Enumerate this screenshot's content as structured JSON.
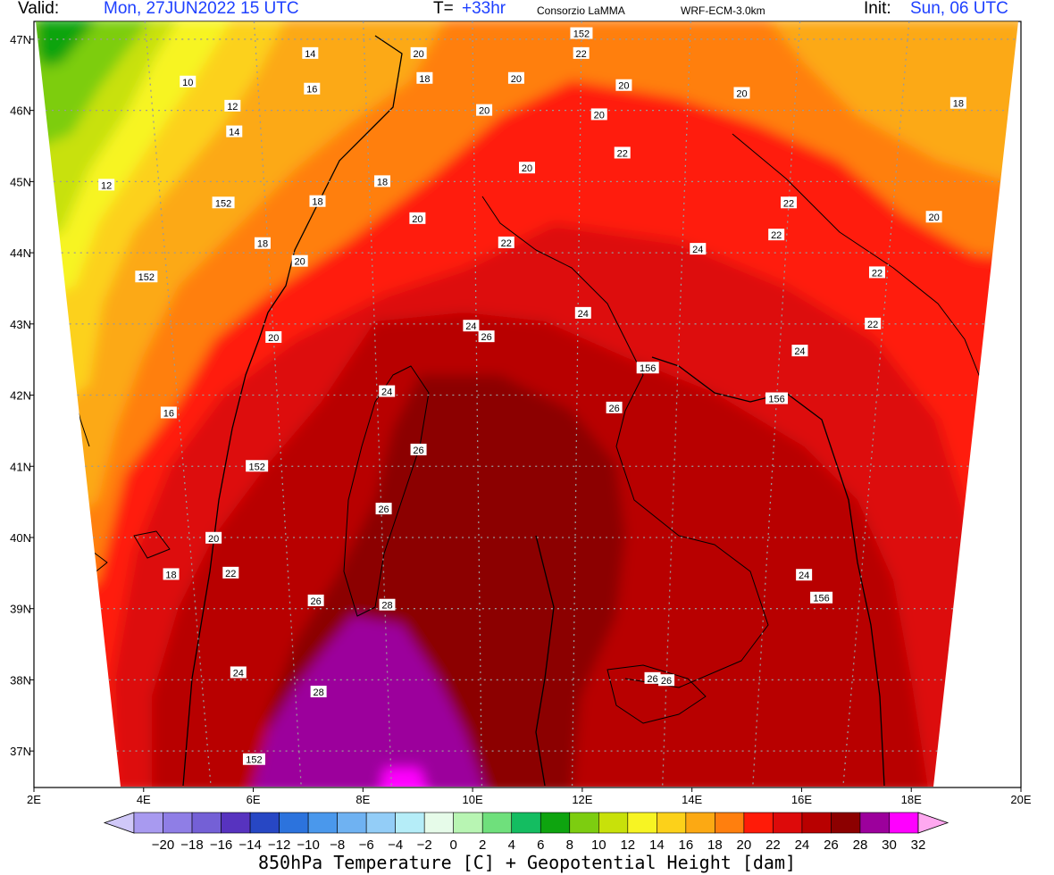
{
  "header": {
    "valid_label": "Valid:",
    "valid_value": "Mon, 27JUN2022  15 UTC",
    "t_label": "T=",
    "t_value": "+33hr",
    "agency": "Consorzio LaMMA",
    "model": "WRF-ECM-3.0km",
    "init_label": "Init:",
    "init_value": "Sun, 06 UTC"
  },
  "map": {
    "longitude_labels": [
      "2E",
      "4E",
      "6E",
      "8E",
      "10E",
      "12E",
      "14E",
      "16E",
      "18E",
      "20E"
    ],
    "latitude_labels": [
      "47N",
      "46N",
      "45N",
      "44N",
      "43N",
      "42N",
      "41N",
      "40N",
      "39N",
      "38N",
      "37N"
    ],
    "temperature_labels": [
      {
        "text": "10",
        "lon": 4.7,
        "lat": 46.4
      },
      {
        "text": "12",
        "lon": 5.5,
        "lat": 46.06
      },
      {
        "text": "14",
        "lon": 5.5,
        "lat": 45.7
      },
      {
        "text": "12",
        "lon": 3.0,
        "lat": 44.95
      },
      {
        "text": "14",
        "lon": 7.0,
        "lat": 46.8
      },
      {
        "text": "16",
        "lon": 7.0,
        "lat": 46.3
      },
      {
        "text": "20",
        "lon": 9.0,
        "lat": 46.8
      },
      {
        "text": "18",
        "lon": 9.1,
        "lat": 46.45
      },
      {
        "text": "20",
        "lon": 10.8,
        "lat": 46.45
      },
      {
        "text": "22",
        "lon": 12.0,
        "lat": 46.8
      },
      {
        "text": "20",
        "lon": 12.8,
        "lat": 46.35
      },
      {
        "text": "20",
        "lon": 10.2,
        "lat": 46.0
      },
      {
        "text": "20",
        "lon": 12.35,
        "lat": 45.94
      },
      {
        "text": "20",
        "lon": 15.0,
        "lat": 46.24
      },
      {
        "text": "18",
        "lon": 19.05,
        "lat": 46.1
      },
      {
        "text": "20",
        "lon": 11.0,
        "lat": 45.19
      },
      {
        "text": "22",
        "lon": 12.8,
        "lat": 45.4
      },
      {
        "text": "18",
        "lon": 8.25,
        "lat": 45.0
      },
      {
        "text": "18",
        "lon": 7.0,
        "lat": 44.72
      },
      {
        "text": "18",
        "lon": 5.9,
        "lat": 44.13
      },
      {
        "text": "20",
        "lon": 8.9,
        "lat": 44.48
      },
      {
        "text": "22",
        "lon": 16.0,
        "lat": 44.7
      },
      {
        "text": "20",
        "lon": 18.8,
        "lat": 44.5
      },
      {
        "text": "22",
        "lon": 15.8,
        "lat": 44.25
      },
      {
        "text": "22",
        "lon": 10.6,
        "lat": 44.14
      },
      {
        "text": "24",
        "lon": 14.3,
        "lat": 44.05
      },
      {
        "text": "20",
        "lon": 6.6,
        "lat": 43.88
      },
      {
        "text": "22",
        "lon": 17.8,
        "lat": 43.72
      },
      {
        "text": "24",
        "lon": 12.1,
        "lat": 43.15
      },
      {
        "text": "24",
        "lon": 9.9,
        "lat": 42.97
      },
      {
        "text": "26",
        "lon": 10.2,
        "lat": 42.82
      },
      {
        "text": "22",
        "lon": 17.8,
        "lat": 43.0
      },
      {
        "text": "24",
        "lon": 16.4,
        "lat": 42.62
      },
      {
        "text": "20",
        "lon": 6.0,
        "lat": 42.81
      },
      {
        "text": "24",
        "lon": 8.2,
        "lat": 42.05
      },
      {
        "text": "26",
        "lon": 12.75,
        "lat": 41.82
      },
      {
        "text": "26",
        "lon": 8.8,
        "lat": 41.23
      },
      {
        "text": "16",
        "lon": 3.8,
        "lat": 41.75
      },
      {
        "text": "26",
        "lon": 8.05,
        "lat": 40.4
      },
      {
        "text": "20",
        "lon": 4.5,
        "lat": 39.99
      },
      {
        "text": "22",
        "lon": 4.8,
        "lat": 39.5
      },
      {
        "text": "18",
        "lon": 3.55,
        "lat": 39.48
      },
      {
        "text": "26",
        "lon": 6.55,
        "lat": 39.11
      },
      {
        "text": "28",
        "lon": 8.05,
        "lat": 39.05
      },
      {
        "text": "24",
        "lon": 16.8,
        "lat": 39.47
      },
      {
        "text": "24",
        "lon": 4.8,
        "lat": 38.1
      },
      {
        "text": "28",
        "lon": 6.5,
        "lat": 37.83
      },
      {
        "text": "26",
        "lon": 14.0,
        "lat": 37.99
      },
      {
        "text": "26",
        "lon": 13.7,
        "lat": 38.02
      }
    ],
    "height_labels": [
      {
        "text": "152",
        "lon": 12.0,
        "lat": 47.08
      },
      {
        "text": "152",
        "lon": 5.2,
        "lat": 44.7
      },
      {
        "text": "152",
        "lon": 3.6,
        "lat": 43.66
      },
      {
        "text": "152",
        "lon": 5.5,
        "lat": 41.0
      },
      {
        "text": "152",
        "lon": 5.0,
        "lat": 36.88
      },
      {
        "text": "156",
        "lon": 13.4,
        "lat": 42.38
      },
      {
        "text": "156",
        "lon": 16.0,
        "lat": 41.95
      },
      {
        "text": "156",
        "lon": 17.2,
        "lat": 39.15
      }
    ]
  },
  "colorbar": {
    "tick_labels": [
      "−20",
      "−18",
      "−16",
      "−14",
      "−12",
      "−10",
      "−8",
      "−6",
      "−4",
      "−2",
      "0",
      "2",
      "4",
      "6",
      "8",
      "10",
      "12",
      "14",
      "16",
      "18",
      "20",
      "22",
      "24",
      "26",
      "28",
      "30",
      "32"
    ],
    "colors": [
      "#a89af0",
      "#8f7ee6",
      "#7460d6",
      "#5733bf",
      "#2747c4",
      "#2c73dd",
      "#4a98ec",
      "#6fb2f2",
      "#93cdf7",
      "#b5edf8",
      "#e6fbe9",
      "#b8f5b3",
      "#6fe07c",
      "#14bd61",
      "#0ea40f",
      "#7dcd10",
      "#c8e10a",
      "#f7f423",
      "#fcd11a",
      "#fca913",
      "#ff7f0e",
      "#ff1b08",
      "#dd0a0a",
      "#b80000",
      "#8c0000",
      "#9c009c",
      "#ff00ff"
    ],
    "low_end_color": "#d0c8f8",
    "high_end_color": "#ffa8f0"
  },
  "footer": {
    "title": "850hPa Temperature [C] + Geopotential Height [dam]"
  }
}
